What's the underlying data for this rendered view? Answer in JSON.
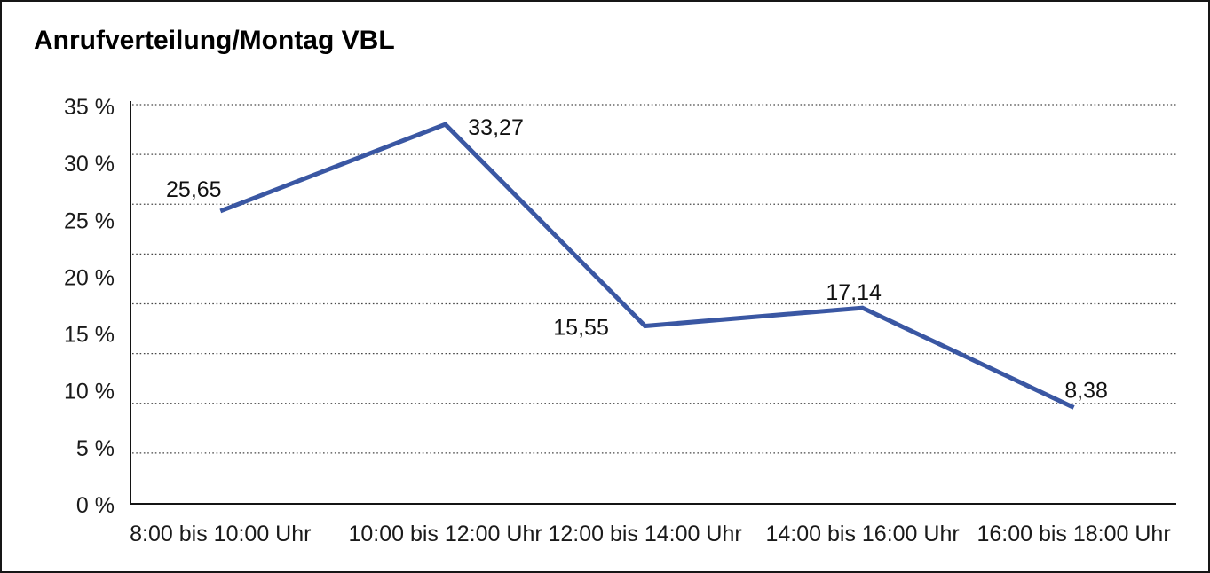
{
  "chart_data": {
    "type": "line",
    "title": "Anrufverteilung/Montag VBL",
    "categories": [
      "8:00 bis 10:00 Uhr",
      "10:00 bis 12:00 Uhr",
      "12:00 bis 14:00 Uhr",
      "14:00 bis 16:00 Uhr",
      "16:00 bis 18:00 Uhr"
    ],
    "values": [
      25.65,
      33.27,
      15.55,
      17.14,
      8.38
    ],
    "value_labels": [
      "25,65",
      "33,27",
      "15,55",
      "17,14",
      "8,38"
    ],
    "y_tick_labels": [
      "35 %",
      "30 %",
      "25 %",
      "20 %",
      "15 %",
      "10 %",
      "5 %",
      "0 %"
    ],
    "ylim": [
      0,
      35
    ],
    "xlabel": "",
    "ylabel": "",
    "legend": "none",
    "grid": "dotted-horizontal",
    "colors": {
      "line": "#3A57A3",
      "axis": "#141414",
      "gridline": "#474747",
      "text": "#1a1a1a",
      "background": "#ffffff"
    }
  }
}
